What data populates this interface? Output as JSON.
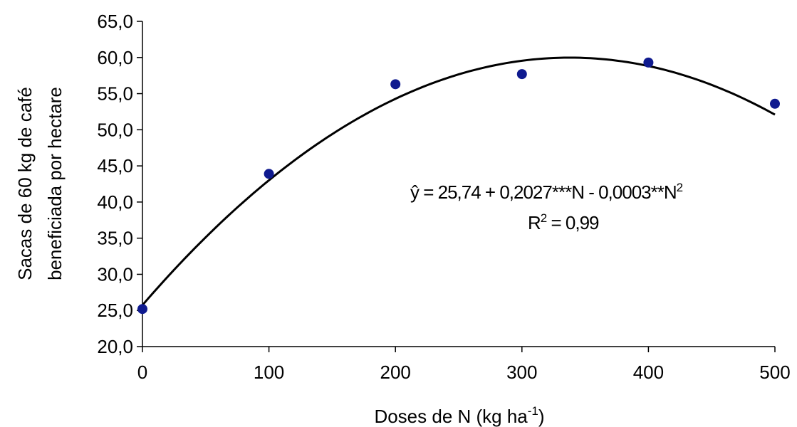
{
  "chart_data": {
    "type": "scatter",
    "title": "",
    "xlabel": "Doses de N (kg ha",
    "xlabel_sup": "-1",
    "xlabel_end": ")",
    "ylabel_line1": "Sacas de 60 kg de café",
    "ylabel_line2": "beneficiada por hectare",
    "xlim": [
      0,
      500
    ],
    "ylim": [
      20,
      65
    ],
    "x_ticks": [
      {
        "value": 0,
        "label": "0"
      },
      {
        "value": 100,
        "label": "100"
      },
      {
        "value": 200,
        "label": "200"
      },
      {
        "value": 300,
        "label": "300"
      },
      {
        "value": 400,
        "label": "400"
      },
      {
        "value": 500,
        "label": "500"
      }
    ],
    "y_ticks": [
      {
        "value": 20,
        "label": "20,0"
      },
      {
        "value": 25,
        "label": "25,0"
      },
      {
        "value": 30,
        "label": "30,0"
      },
      {
        "value": 35,
        "label": "35,0"
      },
      {
        "value": 40,
        "label": "40,0"
      },
      {
        "value": 45,
        "label": "45,0"
      },
      {
        "value": 50,
        "label": "50,0"
      },
      {
        "value": 55,
        "label": "55,0"
      },
      {
        "value": 60,
        "label": "60,0"
      },
      {
        "value": 65,
        "label": "65,0"
      }
    ],
    "series": [
      {
        "points": [
          {
            "x": 0,
            "y": 25.2
          },
          {
            "x": 100,
            "y": 43.9
          },
          {
            "x": 200,
            "y": 56.3
          },
          {
            "x": 300,
            "y": 57.7
          },
          {
            "x": 400,
            "y": 59.3
          },
          {
            "x": 500,
            "y": 53.6
          }
        ]
      }
    ],
    "fit": {
      "type": "quadratic",
      "intercept": 25.74,
      "linear": 0.2027,
      "quadratic": -0.0003
    },
    "annotations": {
      "equation_main": "ŷ = 25,74 + 0,2027***N - 0,0003**N",
      "equation_sup": "2",
      "r2_prefix": "R",
      "r2_sup": "2",
      "r2_value": " = 0,99"
    },
    "colors": {
      "marker": "#0f1a8f",
      "line": "#000000",
      "axis": "#000000"
    },
    "grid": false,
    "legend": "none"
  }
}
